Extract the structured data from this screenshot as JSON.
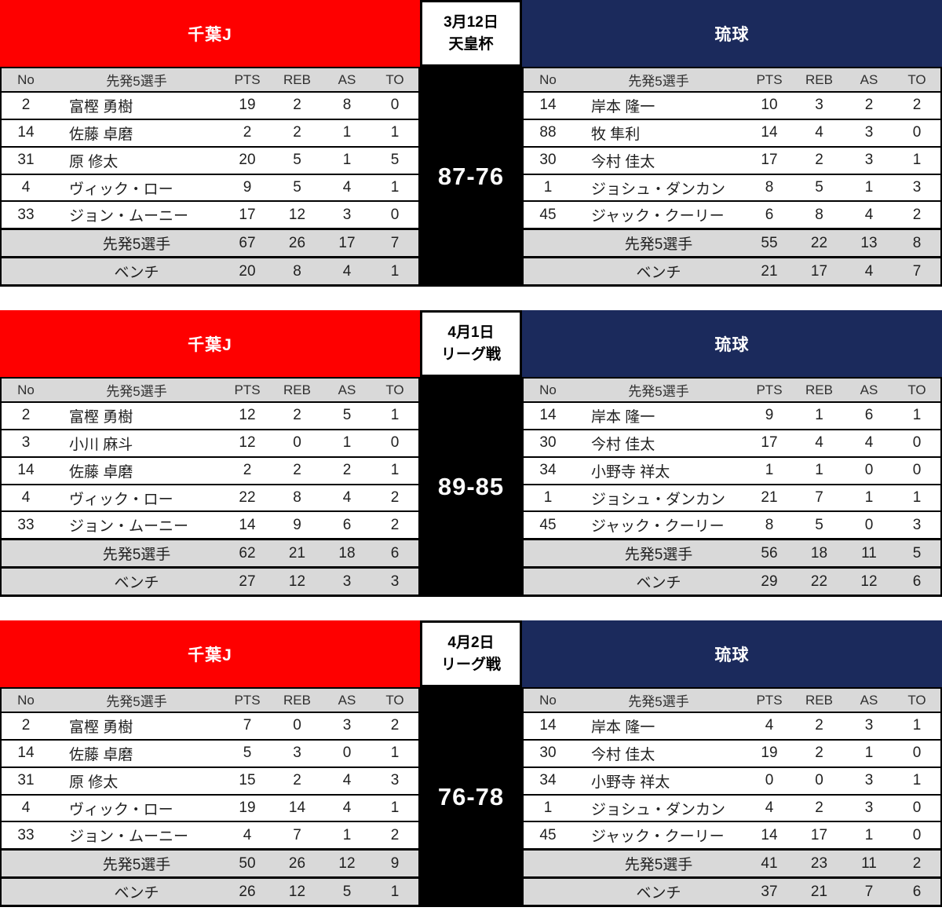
{
  "chart_data": {
    "type": "table",
    "teams": {
      "left": {
        "name": "千葉J",
        "color": "#fe0000"
      },
      "right": {
        "name": "琉球",
        "color": "#1b2a5c"
      }
    },
    "columns": [
      "No",
      "先発5選手",
      "PTS",
      "REB",
      "AS",
      "TO"
    ],
    "summary_labels": {
      "starters": "先発5選手",
      "bench": "ベンチ"
    },
    "games": [
      {
        "date": "3月12日",
        "competition": "天皇杯",
        "score": "87-76",
        "left": {
          "players": [
            {
              "no": "2",
              "name": "富樫 勇樹",
              "stats": [
                19,
                2,
                8,
                0
              ]
            },
            {
              "no": "14",
              "name": "佐藤 卓磨",
              "stats": [
                2,
                2,
                1,
                1
              ]
            },
            {
              "no": "31",
              "name": "原 修太",
              "stats": [
                20,
                5,
                1,
                5
              ]
            },
            {
              "no": "4",
              "name": "ヴィック・ロー",
              "stats": [
                9,
                5,
                4,
                1
              ]
            },
            {
              "no": "33",
              "name": "ジョン・ムーニー",
              "stats": [
                17,
                12,
                3,
                0
              ]
            }
          ],
          "starters_total": [
            67,
            26,
            17,
            7
          ],
          "bench_total": [
            20,
            8,
            4,
            1
          ]
        },
        "right": {
          "players": [
            {
              "no": "14",
              "name": "岸本 隆一",
              "stats": [
                10,
                3,
                2,
                2
              ]
            },
            {
              "no": "88",
              "name": "牧 隼利",
              "stats": [
                14,
                4,
                3,
                0
              ]
            },
            {
              "no": "30",
              "name": "今村 佳太",
              "stats": [
                17,
                2,
                3,
                1
              ]
            },
            {
              "no": "1",
              "name": "ジョシュ・ダンカン",
              "stats": [
                8,
                5,
                1,
                3
              ]
            },
            {
              "no": "45",
              "name": "ジャック・クーリー",
              "stats": [
                6,
                8,
                4,
                2
              ]
            }
          ],
          "starters_total": [
            55,
            22,
            13,
            8
          ],
          "bench_total": [
            21,
            17,
            4,
            7
          ]
        }
      },
      {
        "date": "4月1日",
        "competition": "リーグ戦",
        "score": "89-85",
        "left": {
          "players": [
            {
              "no": "2",
              "name": "富樫 勇樹",
              "stats": [
                12,
                2,
                5,
                1
              ]
            },
            {
              "no": "3",
              "name": "小川 麻斗",
              "stats": [
                12,
                0,
                1,
                0
              ]
            },
            {
              "no": "14",
              "name": "佐藤 卓磨",
              "stats": [
                2,
                2,
                2,
                1
              ]
            },
            {
              "no": "4",
              "name": "ヴィック・ロー",
              "stats": [
                22,
                8,
                4,
                2
              ]
            },
            {
              "no": "33",
              "name": "ジョン・ムーニー",
              "stats": [
                14,
                9,
                6,
                2
              ]
            }
          ],
          "starters_total": [
            62,
            21,
            18,
            6
          ],
          "bench_total": [
            27,
            12,
            3,
            3
          ]
        },
        "right": {
          "players": [
            {
              "no": "14",
              "name": "岸本 隆一",
              "stats": [
                9,
                1,
                6,
                1
              ]
            },
            {
              "no": "30",
              "name": "今村 佳太",
              "stats": [
                17,
                4,
                4,
                0
              ]
            },
            {
              "no": "34",
              "name": "小野寺 祥太",
              "stats": [
                1,
                1,
                0,
                0
              ]
            },
            {
              "no": "1",
              "name": "ジョシュ・ダンカン",
              "stats": [
                21,
                7,
                1,
                1
              ]
            },
            {
              "no": "45",
              "name": "ジャック・クーリー",
              "stats": [
                8,
                5,
                0,
                3
              ]
            }
          ],
          "starters_total": [
            56,
            18,
            11,
            5
          ],
          "bench_total": [
            29,
            22,
            12,
            6
          ]
        }
      },
      {
        "date": "4月2日",
        "competition": "リーグ戦",
        "score": "76-78",
        "left": {
          "players": [
            {
              "no": "2",
              "name": "富樫 勇樹",
              "stats": [
                7,
                0,
                3,
                2
              ]
            },
            {
              "no": "14",
              "name": "佐藤 卓磨",
              "stats": [
                5,
                3,
                0,
                1
              ]
            },
            {
              "no": "31",
              "name": "原 修太",
              "stats": [
                15,
                2,
                4,
                3
              ]
            },
            {
              "no": "4",
              "name": "ヴィック・ロー",
              "stats": [
                19,
                14,
                4,
                1
              ]
            },
            {
              "no": "33",
              "name": "ジョン・ムーニー",
              "stats": [
                4,
                7,
                1,
                2
              ]
            }
          ],
          "starters_total": [
            50,
            26,
            12,
            9
          ],
          "bench_total": [
            26,
            12,
            5,
            1
          ]
        },
        "right": {
          "players": [
            {
              "no": "14",
              "name": "岸本 隆一",
              "stats": [
                4,
                2,
                3,
                1
              ]
            },
            {
              "no": "30",
              "name": "今村 佳太",
              "stats": [
                19,
                2,
                1,
                0
              ]
            },
            {
              "no": "34",
              "name": "小野寺 祥太",
              "stats": [
                0,
                0,
                3,
                1
              ]
            },
            {
              "no": "1",
              "name": "ジョシュ・ダンカン",
              "stats": [
                4,
                2,
                3,
                0
              ]
            },
            {
              "no": "45",
              "name": "ジャック・クーリー",
              "stats": [
                14,
                17,
                1,
                0
              ]
            }
          ],
          "starters_total": [
            41,
            23,
            11,
            2
          ],
          "bench_total": [
            37,
            21,
            7,
            6
          ]
        }
      }
    ]
  }
}
